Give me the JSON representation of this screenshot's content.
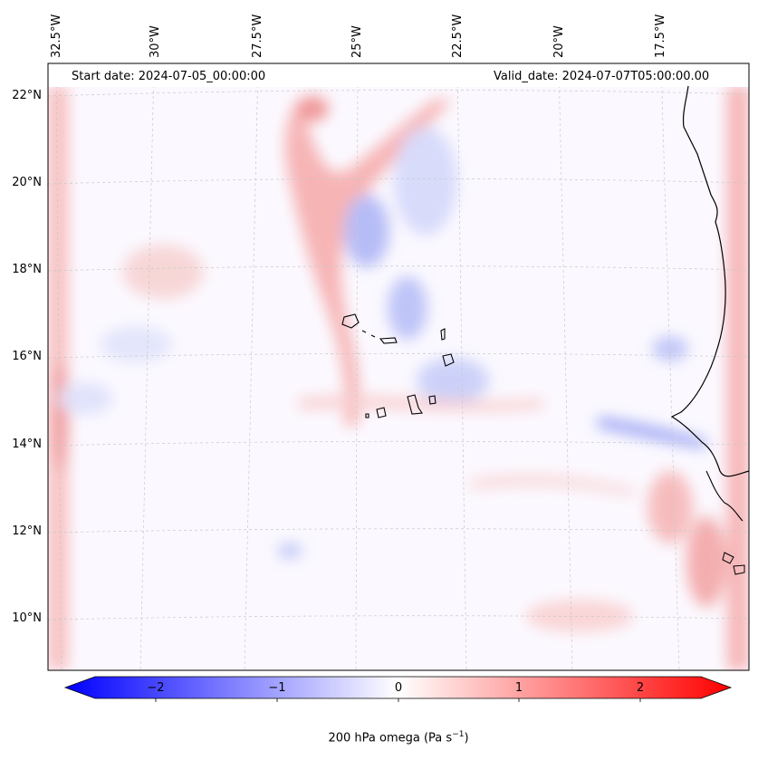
{
  "map": {
    "header": {
      "start_date": "Start date: 2024-07-05_00:00:00",
      "valid_date": "Valid_date: 2024-07-07T05:00:00.00"
    },
    "lon_labels": [
      "32.5°W",
      "30°W",
      "27.5°W",
      "25°W",
      "22.5°W",
      "20°W",
      "17.5°W"
    ],
    "lat_labels": [
      "22°N",
      "20°N",
      "18°N",
      "16°N",
      "14°N",
      "12°N",
      "10°N"
    ],
    "variable": "200 hPa omega",
    "units": "Pa s",
    "units_exponent": "−1"
  },
  "colorbar": {
    "ticks": [
      "−2",
      "−1",
      "0",
      "1",
      "2"
    ],
    "min_color": "#0000ff",
    "mid_color": "#ffffff",
    "max_color": "#ff0000"
  }
}
